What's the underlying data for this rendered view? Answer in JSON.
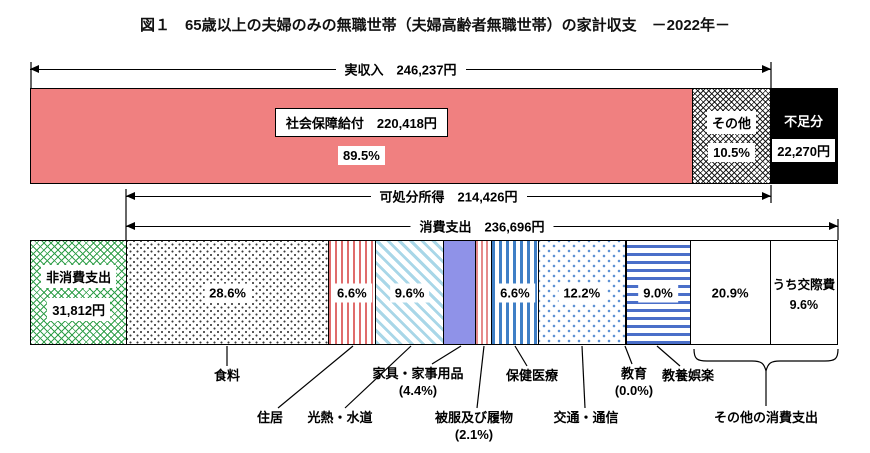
{
  "title": "図１　65歳以上の夫婦のみの無職世帯（夫婦高齢者無職世帯）の家計収支　－2022年－",
  "income_bar": {
    "arrow_label": "実収入　246,237円",
    "social_security_label": "社会保障給付　220,418円",
    "social_security_percent": "89.5%",
    "other_label": "その他",
    "other_percent": "10.5%",
    "shortfall_label": "不足分",
    "shortfall_value": "22,270円"
  },
  "middle": {
    "disposable_label": "可処分所得　214,426円",
    "consumption_label": "消費支出　236,696円"
  },
  "expenditure_bar": {
    "non_consumption_label": "非消費支出",
    "non_consumption_value": "31,812円"
  },
  "colors": {
    "social_security_fill": "#F08080",
    "furniture_fill": "#8F92E8",
    "non_consumption_hatch": "#33A04C",
    "shortfall_fill": "#000000"
  },
  "chart_data": {
    "type": "bar",
    "subtype": "horizontal-stacked-household-balance",
    "title": "図１　65歳以上の夫婦のみの無職世帯（夫婦高齢者無職世帯）の家計収支　－2022年－",
    "year": 2022,
    "unit": "円",
    "income": {
      "name": "実収入",
      "total_yen": 246237,
      "segments": [
        {
          "name": "社会保障給付",
          "yen": 220418,
          "percent": 89.5
        },
        {
          "name": "その他",
          "percent": 10.5
        }
      ],
      "shortfall": {
        "name": "不足分",
        "yen": 22270
      }
    },
    "disposable_income": {
      "name": "可処分所得",
      "yen": 214426
    },
    "non_consumption": {
      "name": "非消費支出",
      "yen": 31812
    },
    "consumption": {
      "name": "消費支出",
      "yen": 236696,
      "segments": [
        {
          "id": "food",
          "name": "食料",
          "percent": 28.6,
          "pattern": "dots-black",
          "show_percent": true,
          "callout": [
            "食料"
          ]
        },
        {
          "id": "housing",
          "name": "住居",
          "percent": 6.6,
          "pattern": "vstripe-red",
          "show_percent": true,
          "callout": [
            "住居"
          ]
        },
        {
          "id": "utilities",
          "name": "光熱・水道",
          "percent": 9.6,
          "pattern": "diag-lightblue",
          "show_percent": true,
          "callout": [
            "光熱・水道"
          ]
        },
        {
          "id": "furniture",
          "name": "家具・家事用品",
          "percent": 4.4,
          "pattern": "solid-periwinkle",
          "show_percent": false,
          "callout": [
            "家具・家事用品",
            "(4.4%)"
          ]
        },
        {
          "id": "clothing",
          "name": "被服及び履物",
          "percent": 2.1,
          "pattern": "vstripe-pink",
          "show_percent": false,
          "callout": [
            "被服及び履物",
            "(2.1%)"
          ]
        },
        {
          "id": "medical",
          "name": "保健医療",
          "percent": 6.6,
          "pattern": "vstripe-blue",
          "show_percent": true,
          "callout": [
            "保健医療"
          ]
        },
        {
          "id": "transport",
          "name": "交通・通信",
          "percent": 12.2,
          "pattern": "dots-blue",
          "show_percent": true,
          "callout": [
            "交通・通信"
          ]
        },
        {
          "id": "education",
          "name": "教育",
          "percent": 0.0,
          "pattern": "none",
          "show_percent": false,
          "callout": [
            "教育",
            "(0.0%)"
          ]
        },
        {
          "id": "recreation",
          "name": "教養娯楽",
          "percent": 9.0,
          "pattern": "hstripe-blue",
          "show_percent": true,
          "callout": [
            "教養娯楽"
          ]
        },
        {
          "id": "other-consumption",
          "name": "その他の消費支出",
          "percent": 20.9,
          "pattern": "white",
          "show_percent": true,
          "callout": [
            "その他の消費支出"
          ],
          "sub": {
            "name": "うち交際費",
            "percent": 9.6
          }
        }
      ]
    }
  }
}
